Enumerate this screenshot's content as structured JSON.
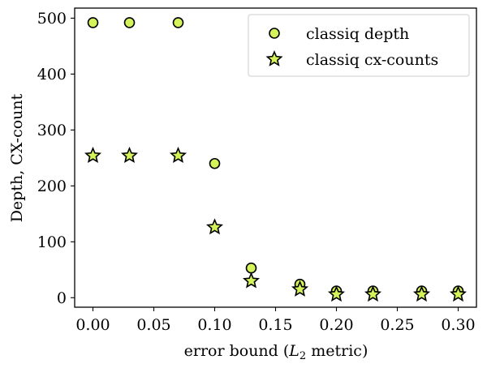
{
  "chart_data": {
    "type": "scatter",
    "xlabel": "error bound (L2 metric)",
    "xlabel_parts": {
      "prefix": "error bound (",
      "symbol": "L",
      "subscript": "2",
      "suffix": " metric)"
    },
    "ylabel": "Depth, CX-count",
    "xlim": [
      -0.015,
      0.315
    ],
    "ylim": [
      -17,
      518
    ],
    "xticks": [
      0.0,
      0.05,
      0.1,
      0.15,
      0.2,
      0.25,
      0.3
    ],
    "xtick_labels": [
      "0.00",
      "0.05",
      "0.10",
      "0.15",
      "0.20",
      "0.25",
      "0.30"
    ],
    "yticks": [
      0,
      100,
      200,
      300,
      400,
      500
    ],
    "ytick_labels": [
      "0",
      "100",
      "200",
      "300",
      "400",
      "500"
    ],
    "grid": false,
    "legend_position": "top-right",
    "marker_color": "#d4f25a",
    "marker_edge": "#000000",
    "series": [
      {
        "name": "classiq depth",
        "marker": "circle",
        "x": [
          0.0,
          0.03,
          0.07,
          0.1,
          0.13,
          0.17,
          0.2,
          0.23,
          0.27,
          0.3
        ],
        "y": [
          492,
          492,
          492,
          240,
          53,
          24,
          12,
          12,
          12,
          12
        ]
      },
      {
        "name": "classiq cx-counts",
        "marker": "star",
        "x": [
          0.0,
          0.03,
          0.07,
          0.1,
          0.13,
          0.17,
          0.2,
          0.23,
          0.27,
          0.3
        ],
        "y": [
          254,
          254,
          254,
          126,
          30,
          15,
          6,
          6,
          6,
          6
        ]
      }
    ]
  }
}
